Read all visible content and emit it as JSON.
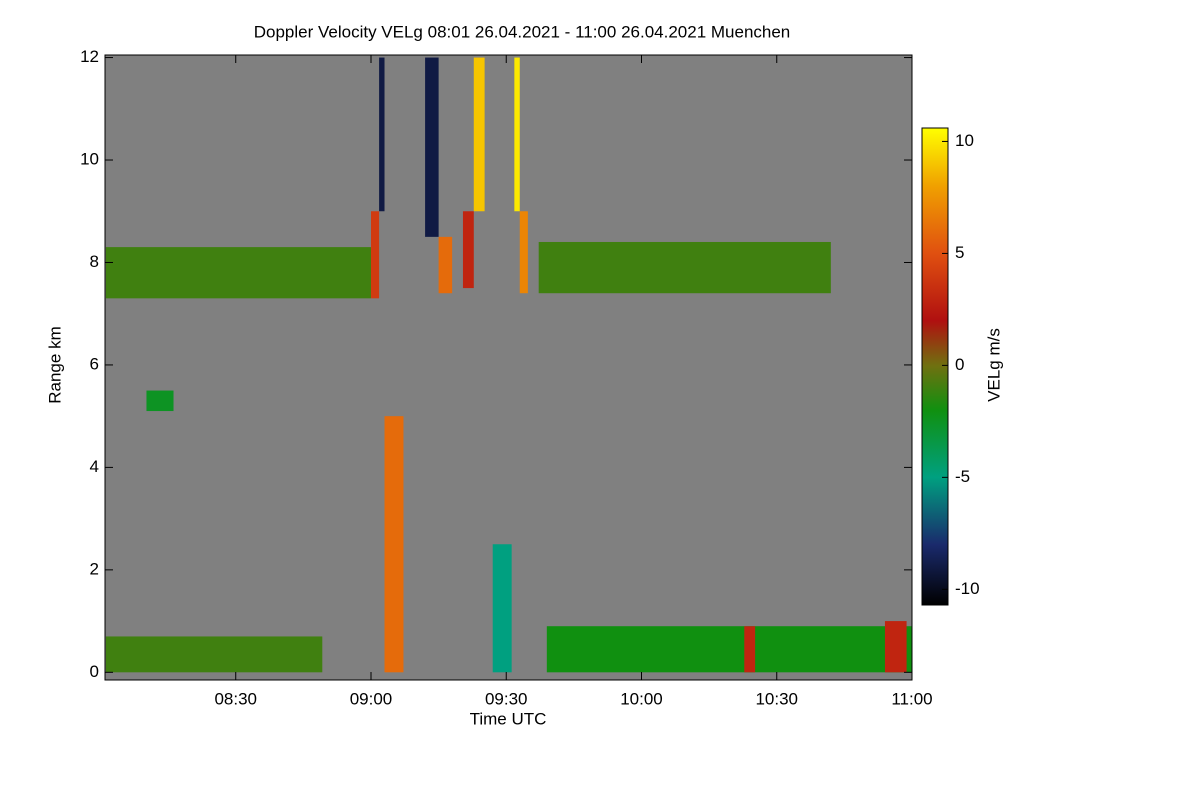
{
  "chart_data": {
    "type": "heatmap",
    "title": "Doppler Velocity VELg   08:01 26.04.2021 - 11:00 26.04.2021 Muenchen",
    "x_label": "Time UTC",
    "y_label": "Range km",
    "colorbar_label": "VELg m/s",
    "background_color": "#808080",
    "xlim": [
      8.0167,
      11.0
    ],
    "xticks": [
      {
        "value": 8.5,
        "label": "08:30"
      },
      {
        "value": 9,
        "label": "09:00"
      },
      {
        "value": 9.5,
        "label": "09:30"
      },
      {
        "value": 10,
        "label": "10:00"
      },
      {
        "value": 10.5,
        "label": "10:30"
      },
      {
        "value": 11,
        "label": "11:00"
      }
    ],
    "ylim": [
      -0.15,
      12.05
    ],
    "yticks": [
      0,
      2,
      4,
      6,
      8,
      10,
      12
    ],
    "clim": [
      -10.7,
      10.6
    ],
    "cticks": [
      -10,
      -5,
      0,
      5,
      10
    ],
    "colormap": [
      {
        "value": -10.7,
        "color": "#000000"
      },
      {
        "value": -8,
        "color": "#1a2a6c"
      },
      {
        "value": -5,
        "color": "#00a080"
      },
      {
        "value": -2,
        "color": "#109010"
      },
      {
        "value": 0,
        "color": "#707010"
      },
      {
        "value": 2,
        "color": "#b01010"
      },
      {
        "value": 5,
        "color": "#e05010"
      },
      {
        "value": 8,
        "color": "#f0a000"
      },
      {
        "value": 10.6,
        "color": "#ffff00"
      }
    ],
    "cells": [
      {
        "x": [
          8.02,
          9.0
        ],
        "y": [
          7.3,
          8.3
        ],
        "value": -1
      },
      {
        "x": [
          9.62,
          10.7
        ],
        "y": [
          7.4,
          8.4
        ],
        "value": -1
      },
      {
        "x": [
          8.17,
          8.27
        ],
        "y": [
          5.1,
          5.5
        ],
        "value": -2.5
      },
      {
        "x": [
          8.02,
          8.82
        ],
        "y": [
          0,
          0.7
        ],
        "value": -1
      },
      {
        "x": [
          9.65,
          11.0
        ],
        "y": [
          0,
          0.9
        ],
        "value": -2
      },
      {
        "x": [
          10.38,
          10.42
        ],
        "y": [
          0,
          0.9
        ],
        "value": 3
      },
      {
        "x": [
          10.9,
          10.98
        ],
        "y": [
          0,
          1
        ],
        "value": 3
      },
      {
        "x": [
          9.05,
          9.12
        ],
        "y": [
          0,
          5
        ],
        "value": 6
      },
      {
        "x": [
          9.45,
          9.52
        ],
        "y": [
          0,
          2.5
        ],
        "value": -5
      },
      {
        "x": [
          9.0,
          9.03
        ],
        "y": [
          7.3,
          9
        ],
        "value": 4
      },
      {
        "x": [
          9.03,
          9.05
        ],
        "y": [
          9,
          12
        ],
        "value": -9
      },
      {
        "x": [
          9.2,
          9.25
        ],
        "y": [
          8.5,
          12
        ],
        "value": -9
      },
      {
        "x": [
          9.25,
          9.3
        ],
        "y": [
          7.4,
          8.5
        ],
        "value": 6
      },
      {
        "x": [
          9.38,
          9.42
        ],
        "y": [
          9,
          12
        ],
        "value": 9
      },
      {
        "x": [
          9.34,
          9.38
        ],
        "y": [
          7.5,
          9
        ],
        "value": 3
      },
      {
        "x": [
          9.55,
          9.58
        ],
        "y": [
          7.4,
          9
        ],
        "value": 7
      },
      {
        "x": [
          9.53,
          9.55
        ],
        "y": [
          9,
          12
        ],
        "value": 10
      }
    ]
  }
}
